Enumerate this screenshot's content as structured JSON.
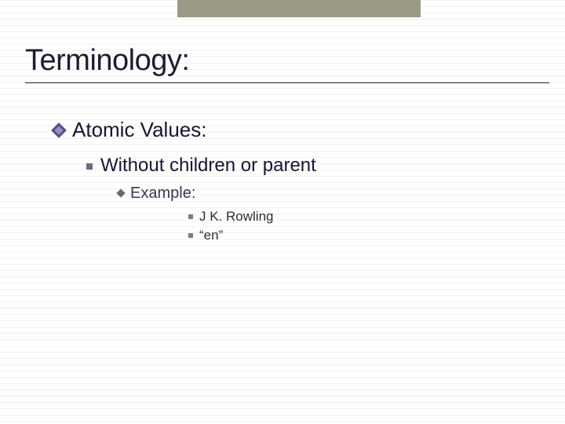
{
  "colors": {
    "top_bar": "#9b9985",
    "title_text": "#221a33",
    "title_rule": "#2a2a2a",
    "bg_line": "#f4f1ee",
    "bullet_diamond_outer": "#5b4b88",
    "bullet_diamond_inner": "#9a8dc2",
    "square_bullet": "#6f6a85",
    "diamond_small": "#6a6a6a",
    "square_tiny": "#7a7a88",
    "body_text": "#1c1233",
    "level3_text": "#3b3552",
    "level4_text": "#2e2e2e"
  },
  "typography": {
    "title_fontsize": 38,
    "level1_fontsize": 26,
    "level2_fontsize": 24,
    "level3_fontsize": 20,
    "level4_fontsize": 17,
    "font_family": "Verdana"
  },
  "slide": {
    "title": "Terminology:",
    "level1": {
      "text": "Atomic Values:"
    },
    "level2": {
      "text": "Without children or parent"
    },
    "level3": {
      "text": "Example:"
    },
    "level4": {
      "items": [
        "J K. Rowling",
        "“en”"
      ]
    }
  }
}
